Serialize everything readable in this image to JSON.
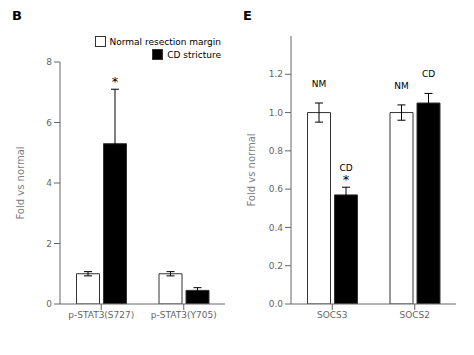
{
  "chart_data": [
    {
      "type": "bar",
      "title": "B",
      "categories": [
        "p-STAT3(S727)",
        "p-STAT3(Y705)"
      ],
      "series": [
        {
          "name": "Normal resection margin",
          "color": "white",
          "values": [
            1.0,
            1.0
          ],
          "errors": [
            0.07,
            0.07
          ]
        },
        {
          "name": "CD stricture",
          "color": "black",
          "values": [
            5.3,
            0.45
          ],
          "errors": [
            1.8,
            0.09
          ]
        }
      ],
      "ylabel": "Fold vs normal",
      "ylim": [
        0,
        8
      ],
      "yticks": [
        0,
        2,
        4,
        6,
        8
      ],
      "legend": "upper right",
      "annotations": [
        {
          "text": "*",
          "category": "p-STAT3(S727)",
          "series": "CD stricture"
        }
      ]
    },
    {
      "type": "bar",
      "title": "E",
      "categories": [
        "SOCS3",
        "SOCS2"
      ],
      "series": [
        {
          "name": "NM",
          "color": "white",
          "values": [
            1.0,
            1.0
          ],
          "errors": [
            0.05,
            0.04
          ]
        },
        {
          "name": "CD",
          "color": "black",
          "values": [
            0.57,
            1.05
          ],
          "errors": [
            0.04,
            0.05
          ]
        }
      ],
      "ylabel": "Fold vs normal",
      "ylim": [
        0,
        1.4
      ],
      "yticks": [
        {
          "value": 0.0,
          "label": "0.0"
        },
        0.2,
        0.4,
        0.6,
        0.8,
        {
          "value": 1.0,
          "label": "1.0"
        },
        1.2
      ],
      "annotations": [
        {
          "text": "*",
          "category": "SOCS3",
          "series": "CD"
        }
      ]
    }
  ]
}
